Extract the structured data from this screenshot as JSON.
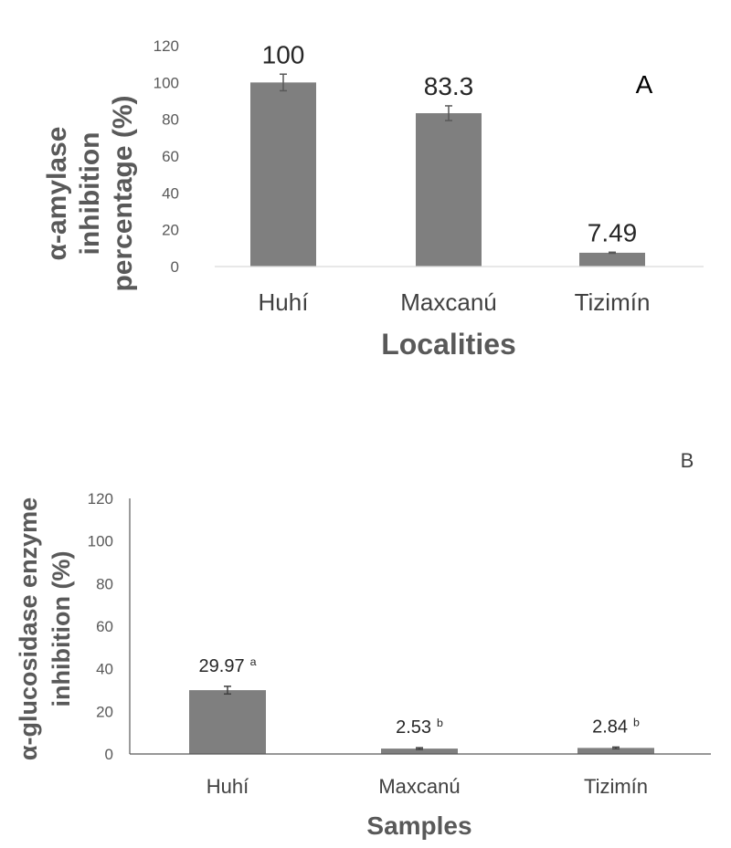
{
  "chart_data": [
    {
      "type": "bar",
      "panel_label": "A",
      "categories": [
        "Huhí",
        "Maxcanú",
        "Tizimín"
      ],
      "values": [
        100,
        83.3,
        7.49
      ],
      "errors": [
        4.5,
        4.0,
        0.3
      ],
      "data_labels": [
        "100",
        "83.3",
        "7.49"
      ],
      "superscripts": [
        "",
        "",
        ""
      ],
      "ylabel_lines": [
        "α-amylase",
        "inhibition",
        "percentage (%)"
      ],
      "xlabel": "Localities",
      "ylim": [
        0,
        120
      ],
      "yticks": [
        0,
        20,
        40,
        60,
        80,
        100,
        120
      ],
      "ytick_labels": [
        "0",
        "20",
        "40",
        "60",
        "80",
        "100",
        "120"
      ],
      "bar_color": "#7f7f7f",
      "grid": false
    },
    {
      "type": "bar",
      "panel_label": "B",
      "categories": [
        "Huhí",
        "Maxcanú",
        "Tizimín"
      ],
      "values": [
        29.97,
        2.53,
        2.84
      ],
      "errors": [
        1.8,
        0.4,
        0.4
      ],
      "data_labels": [
        "29.97",
        "2.53",
        "2.84"
      ],
      "superscripts": [
        "a",
        "b",
        "b"
      ],
      "ylabel_lines": [
        "α-glucosidase enzyme",
        "inhibition (%)"
      ],
      "xlabel": "Samples",
      "ylim": [
        0,
        120
      ],
      "yticks": [
        0,
        20,
        40,
        60,
        80,
        100,
        120
      ],
      "ytick_labels": [
        "0",
        "20",
        "40",
        "60",
        "80",
        "100",
        "120"
      ],
      "bar_color": "#7f7f7f",
      "grid": false
    }
  ]
}
